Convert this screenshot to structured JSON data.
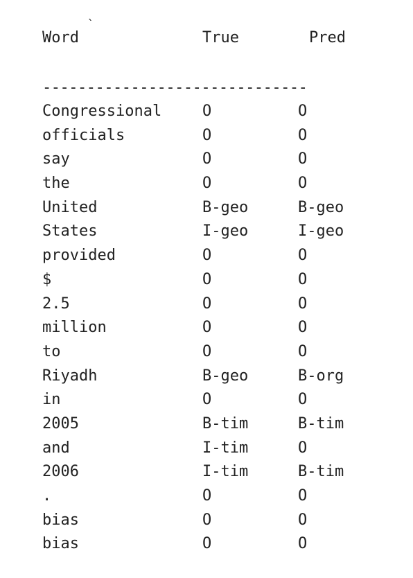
{
  "table": {
    "headers": {
      "word": "Word",
      "true": "True",
      "pred": "Pred"
    },
    "tick_mark": "`",
    "divider": "------------------------------",
    "rows": [
      {
        "word": "Congressional",
        "true": "O",
        "pred": "O"
      },
      {
        "word": "officials",
        "true": "O",
        "pred": "O"
      },
      {
        "word": "say",
        "true": "O",
        "pred": "O"
      },
      {
        "word": "the",
        "true": "O",
        "pred": "O"
      },
      {
        "word": "United",
        "true": "B-geo",
        "pred": "B-geo"
      },
      {
        "word": "States",
        "true": "I-geo",
        "pred": "I-geo"
      },
      {
        "word": "provided",
        "true": "O",
        "pred": "O"
      },
      {
        "word": "$",
        "true": "O",
        "pred": "O"
      },
      {
        "word": "2.5",
        "true": "O",
        "pred": "O"
      },
      {
        "word": "million",
        "true": "O",
        "pred": "O"
      },
      {
        "word": "to",
        "true": "O",
        "pred": "O"
      },
      {
        "word": "Riyadh",
        "true": "B-geo",
        "pred": "B-org"
      },
      {
        "word": "in",
        "true": "O",
        "pred": "O"
      },
      {
        "word": "2005",
        "true": "B-tim",
        "pred": "B-tim"
      },
      {
        "word": "and",
        "true": "I-tim",
        "pred": "O"
      },
      {
        "word": "2006",
        "true": "I-tim",
        "pred": "B-tim"
      },
      {
        "word": ".",
        "true": "O",
        "pred": "O"
      },
      {
        "word": "bias",
        "true": "O",
        "pred": "O"
      },
      {
        "word": "bias",
        "true": "O",
        "pred": "O"
      }
    ]
  }
}
